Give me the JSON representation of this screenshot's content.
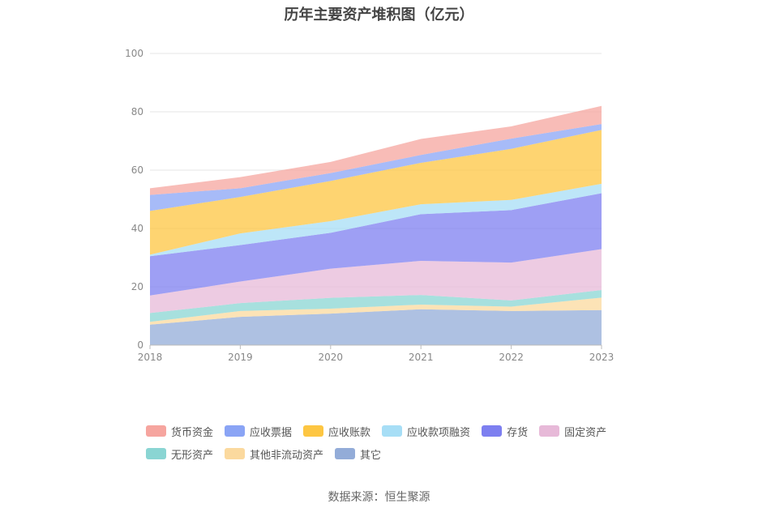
{
  "title": "历年主要资产堆积图（亿元）",
  "source": "数据来源：恒生聚源",
  "chart_data": {
    "type": "area",
    "stacked": true,
    "x": [
      "2018",
      "2019",
      "2020",
      "2021",
      "2022",
      "2023"
    ],
    "ylim": [
      0,
      100
    ],
    "yticks": [
      "0",
      "20",
      "40",
      "60",
      "80",
      "100"
    ],
    "grid": true,
    "legend_position": "bottom",
    "series": [
      {
        "name": "其它",
        "color": "#93acd8",
        "values": [
          7.0,
          9.7,
          10.8,
          12.3,
          11.7,
          12.0
        ]
      },
      {
        "name": "其他非流动资产",
        "color": "#fbd99e",
        "values": [
          1.0,
          2.0,
          1.7,
          1.6,
          1.5,
          4.3
        ]
      },
      {
        "name": "无形资产",
        "color": "#8ad5d3",
        "values": [
          3.0,
          2.7,
          3.7,
          3.3,
          2.1,
          2.6
        ]
      },
      {
        "name": "固定资产",
        "color": "#e7b9d8",
        "values": [
          6.0,
          7.4,
          10.0,
          11.7,
          13.0,
          14.0
        ]
      },
      {
        "name": "存货",
        "color": "#7d7ff0",
        "values": [
          13.5,
          12.5,
          12.3,
          16.0,
          18.0,
          19.2
        ]
      },
      {
        "name": "应收款项融资",
        "color": "#a7def6",
        "values": [
          0.5,
          4.0,
          4.0,
          3.4,
          3.5,
          3.2
        ]
      },
      {
        "name": "应收账款",
        "color": "#fdc642",
        "values": [
          15.0,
          12.5,
          13.8,
          14.2,
          17.5,
          18.5
        ]
      },
      {
        "name": "应收票据",
        "color": "#8aa4f5",
        "values": [
          5.5,
          3.0,
          2.7,
          2.7,
          3.5,
          2.0
        ]
      },
      {
        "name": "货币资金",
        "color": "#f6a59f",
        "values": [
          2.3,
          3.8,
          3.8,
          5.5,
          4.2,
          6.2
        ]
      }
    ]
  },
  "legend": [
    {
      "name": "货币资金",
      "color": "#f6a59f"
    },
    {
      "name": "应收票据",
      "color": "#8aa4f5"
    },
    {
      "name": "应收账款",
      "color": "#fdc642"
    },
    {
      "name": "应收款项融资",
      "color": "#a7def6"
    },
    {
      "name": "存货",
      "color": "#7d7ff0"
    },
    {
      "name": "固定资产",
      "color": "#e7b9d8"
    },
    {
      "name": "无形资产",
      "color": "#8ad5d3"
    },
    {
      "name": "其他非流动资产",
      "color": "#fbd99e"
    },
    {
      "name": "其它",
      "color": "#93acd8"
    }
  ]
}
